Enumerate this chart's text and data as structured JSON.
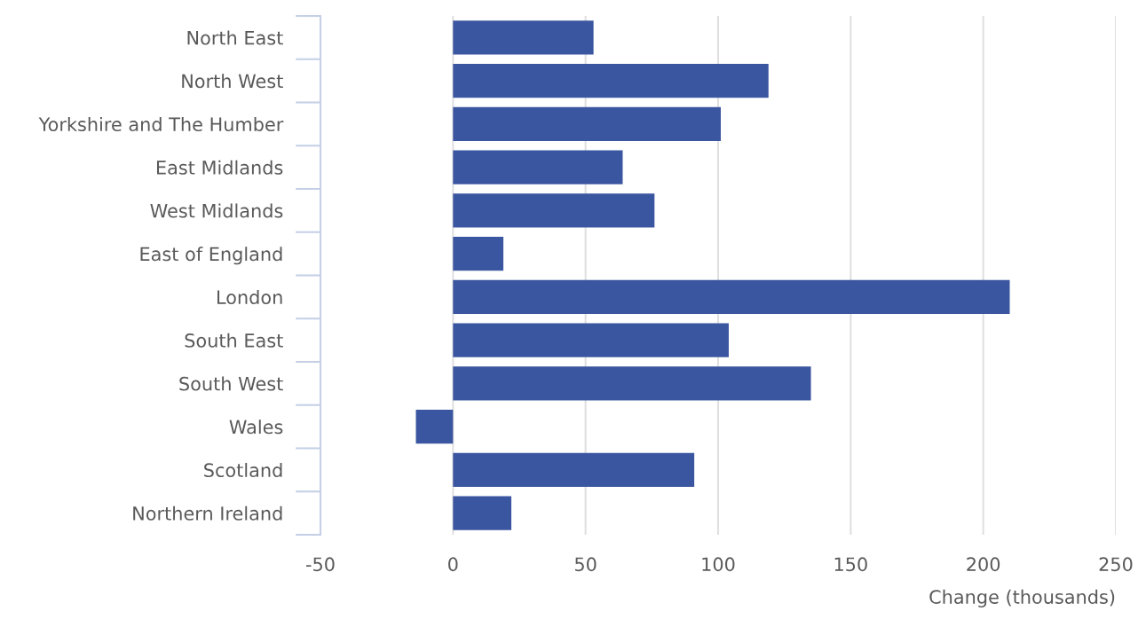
{
  "chart_data": {
    "type": "bar",
    "orientation": "horizontal",
    "xlabel": "Change (thousands)",
    "categories": [
      "North East",
      "North West",
      "Yorkshire and The Humber",
      "East Midlands",
      "West Midlands",
      "East of England",
      "London",
      "South East",
      "South West",
      "Wales",
      "Scotland",
      "Northern Ireland"
    ],
    "values": [
      53,
      119,
      101,
      64,
      76,
      19,
      210,
      104,
      135,
      -14,
      91,
      22
    ],
    "color": "#3b56a0",
    "xlim": [
      -50,
      250
    ],
    "xticks": [
      -50,
      0,
      50,
      100,
      150,
      200,
      250
    ],
    "grid": "x"
  }
}
